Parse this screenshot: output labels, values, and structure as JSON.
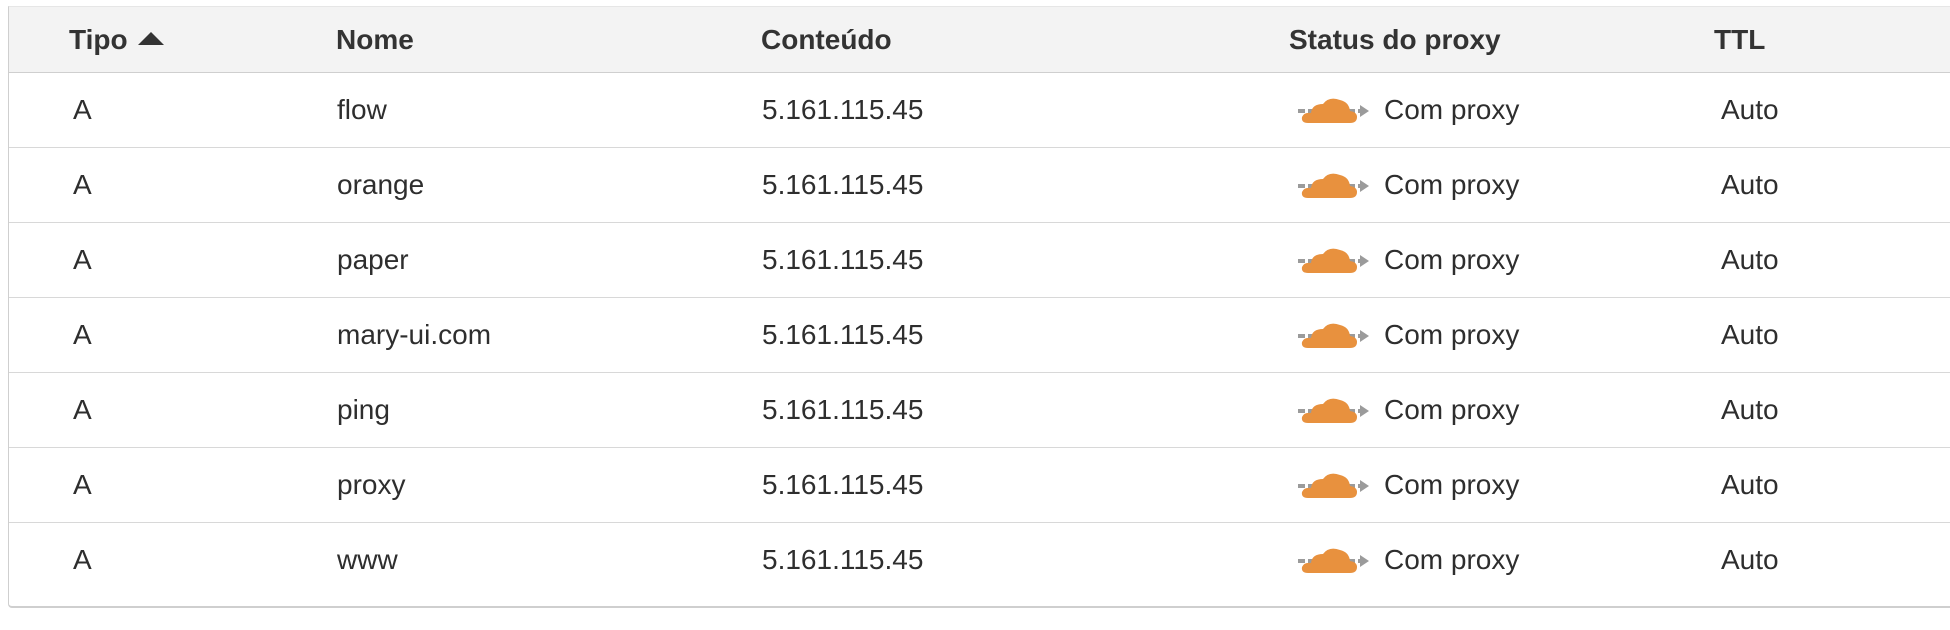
{
  "header": {
    "type_label": "Tipo",
    "name_label": "Nome",
    "content_label": "Conteúdo",
    "proxy_label": "Status do proxy",
    "ttl_label": "TTL"
  },
  "rows": [
    {
      "type": "A",
      "name": "flow",
      "content": "5.161.115.45",
      "proxy": "Com proxy",
      "ttl": "Auto"
    },
    {
      "type": "A",
      "name": "orange",
      "content": "5.161.115.45",
      "proxy": "Com proxy",
      "ttl": "Auto"
    },
    {
      "type": "A",
      "name": "paper",
      "content": "5.161.115.45",
      "proxy": "Com proxy",
      "ttl": "Auto"
    },
    {
      "type": "A",
      "name": "mary-ui.com",
      "content": "5.161.115.45",
      "proxy": "Com proxy",
      "ttl": "Auto"
    },
    {
      "type": "A",
      "name": "ping",
      "content": "5.161.115.45",
      "proxy": "Com proxy",
      "ttl": "Auto"
    },
    {
      "type": "A",
      "name": "proxy",
      "content": "5.161.115.45",
      "proxy": "Com proxy",
      "ttl": "Auto"
    },
    {
      "type": "A",
      "name": "www",
      "content": "5.161.115.45",
      "proxy": "Com proxy",
      "ttl": "Auto"
    }
  ],
  "icons": {
    "sort": "sort-ascending-arrow-icon",
    "proxy": "proxied-cloud-icon"
  },
  "colors": {
    "cloud": "#e8913e",
    "arrow": "#9b9b9b",
    "header_bg": "#f3f3f3"
  }
}
